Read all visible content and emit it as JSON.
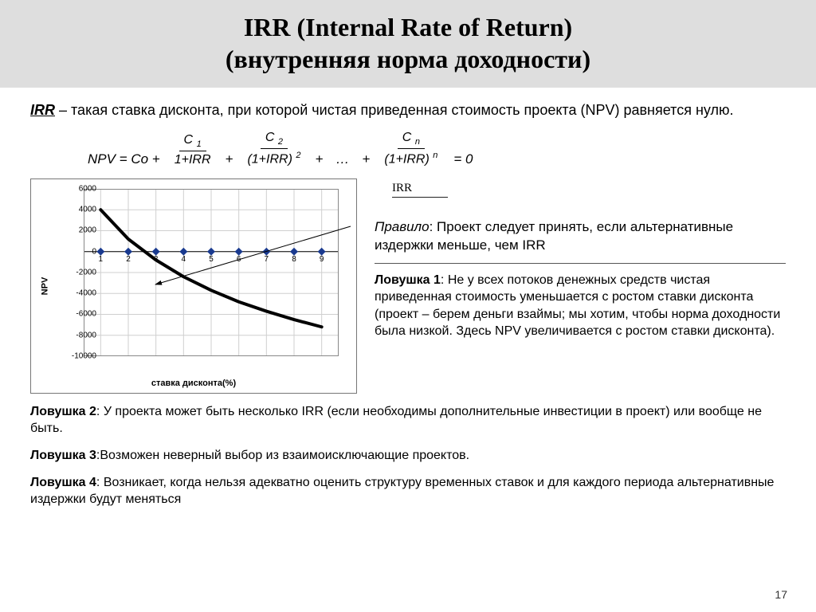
{
  "title_line1": "IRR (Internal Rate of Return)",
  "title_line2": "(внутренняя норма доходности)",
  "definition": {
    "term": "IRR",
    "text": " – такая ставка дисконта, при которой чистая приведенная стоимость проекта (NPV) равняется нулю."
  },
  "formula": {
    "lead": "NPV = Co  +",
    "c1_num": "C",
    "c1_sub": "1",
    "c1_den": "1+IRR",
    "plus1": "+",
    "c2_num": "C",
    "c2_sub": "2",
    "c2_den": "(1+IRR)",
    "c2_sup": "2",
    "plus2": "+",
    "dots": "…",
    "plus3": "+",
    "cn_num": "C",
    "cn_sub": "n",
    "cn_den": "(1+IRR)",
    "cn_sup": "n",
    "tail": "= 0"
  },
  "chart": {
    "irr_label": "IRR",
    "y_axis_label": "NPV",
    "x_axis_label": "ставка дисконта(%)",
    "y_ticks": [
      6000,
      4000,
      2000,
      0,
      -2000,
      -4000,
      -6000,
      -8000,
      -10000
    ],
    "ylim": [
      -10000,
      6000
    ],
    "x_categories": [
      1,
      2,
      3,
      4,
      5,
      6,
      7,
      8,
      9
    ],
    "curve": [
      4000,
      1200,
      -800,
      -2400,
      -3700,
      -4800,
      -5700,
      -6500,
      -7200
    ],
    "marker_y": 0,
    "curve_color": "#000000",
    "curve_width": 4,
    "marker_color": "#1a3a8f",
    "marker_size": 5,
    "grid_color": "#cfcfcf",
    "axis_color": "#000000",
    "border_color": "#777777",
    "background": "#ffffff",
    "tick_fontsize": 10,
    "label_fontsize": 11,
    "arrow_from": [
      440,
      284
    ],
    "arrow_to": [
      195,
      357
    ]
  },
  "rule": {
    "label": "Правило",
    "text": ": Проект следует принять, если альтернативные издержки меньше, чем IRR"
  },
  "trap1": {
    "label": "Ловушка 1",
    "text": ": Не у всех потоков денежных средств чистая приведенная стоимость уменьшается с ростом ставки дисконта (проект – берем деньги взаймы; мы хотим, чтобы норма доходности была низкой. Здесь NPV увеличивается с ростом ставки дисконта)."
  },
  "trap2": {
    "label": "Ловушка 2",
    "text": ": У проекта может быть несколько IRR (если необходимы  дополнительные инвестиции  в проект) или вообще не быть."
  },
  "trap3": {
    "label": "Ловушка 3",
    "text": ":Возможен неверный  выбор из взаимоисключающие  проектов."
  },
  "trap4": {
    "label": "Ловушка 4",
    "text": ": Возникает, когда нельзя адекватно оценить структуру временных  ставок и для каждого периода альтернативные  издержки будут меняться"
  },
  "page_number": "17"
}
